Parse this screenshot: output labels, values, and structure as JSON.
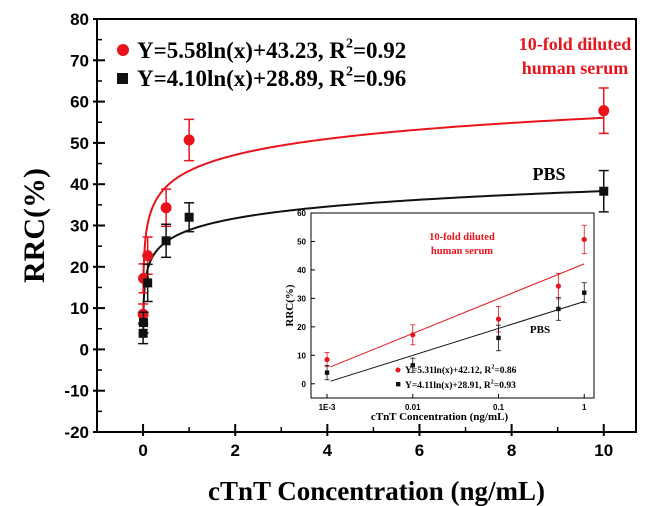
{
  "chart_data": [
    {
      "type": "scatter",
      "xlabel": "cTnT Concentration (ng/mL)",
      "ylabel": "RRC(%)",
      "xlim": [
        -1,
        10.7
      ],
      "ylim": [
        -20,
        80
      ],
      "xticks": [
        0,
        2,
        4,
        6,
        8,
        10
      ],
      "xtick_labels": [
        "0",
        "2",
        "4",
        "6",
        "8",
        "10"
      ],
      "yticks": [
        -20,
        -10,
        0,
        10,
        20,
        30,
        40,
        50,
        60,
        70,
        80
      ],
      "ytick_labels": [
        "-20",
        "-10",
        "0",
        "10",
        "20",
        "30",
        "40",
        "50",
        "60",
        "70",
        "80"
      ],
      "colors": {
        "serum": "#e8141c",
        "pbs": "#111111"
      },
      "series": [
        {
          "name": "10-fold diluted human serum",
          "marker": "circle",
          "color": "#e8141c",
          "x": [
            0.001,
            0.01,
            0.1,
            0.5,
            1,
            10
          ],
          "y": [
            8.5,
            17.2,
            22.7,
            34.3,
            50.7,
            57.8
          ],
          "yerr": [
            2.5,
            3.5,
            4.5,
            4.5,
            5.0,
            5.5
          ],
          "fit": {
            "a": 5.58,
            "b": 43.23
          },
          "equation": "Y=5.58ln(x)+43.23, R²=0.92",
          "label": [
            "10-fold diluted",
            "human serum"
          ]
        },
        {
          "name": "PBS",
          "marker": "square",
          "color": "#111111",
          "x": [
            0.001,
            0.01,
            0.1,
            0.5,
            1,
            10
          ],
          "y": [
            3.9,
            6.5,
            16.1,
            26.3,
            32.0,
            38.3
          ],
          "yerr": [
            2.5,
            2.5,
            4.5,
            4.0,
            3.5,
            5.0
          ],
          "fit": {
            "a": 4.1,
            "b": 28.89
          },
          "equation": "Y=4.10ln(x)+28.89, R²=0.96",
          "label": [
            "PBS"
          ]
        }
      ]
    },
    {
      "type": "scatter",
      "inset": true,
      "xlabel": "cTnT Concentration (ng/mL)",
      "ylabel": "RRC(%)",
      "xscale": "log",
      "xlim": [
        0.00065,
        1.3
      ],
      "ylim": [
        -5,
        60
      ],
      "xticks": [
        0.001,
        0.01,
        0.1,
        1
      ],
      "xtick_labels": [
        "1E-3",
        "0.01",
        "0.1",
        "1"
      ],
      "yticks": [
        0,
        10,
        20,
        30,
        40,
        50,
        60
      ],
      "ytick_labels": [
        "0",
        "10",
        "20",
        "30",
        "40",
        "50",
        "60"
      ],
      "series": [
        {
          "name": "10-fold diluted human serum",
          "marker": "circle",
          "color": "#e8141c",
          "x": [
            0.001,
            0.01,
            0.1,
            0.5,
            1
          ],
          "y": [
            8.5,
            17.2,
            22.7,
            34.3,
            50.7
          ],
          "yerr": [
            2.5,
            3.5,
            4.5,
            4.5,
            5.0
          ],
          "fit": {
            "a": 5.31,
            "b": 42.12
          },
          "equation": "Y=5.31ln(x)+42.12, R²=0.86",
          "label": [
            "10-fold diluted",
            "human serum"
          ]
        },
        {
          "name": "PBS",
          "marker": "square",
          "color": "#111111",
          "x": [
            0.001,
            0.01,
            0.1,
            0.5,
            1
          ],
          "y": [
            3.9,
            6.5,
            16.1,
            26.3,
            32.0
          ],
          "yerr": [
            2.5,
            2.5,
            4.5,
            4.0,
            3.5
          ],
          "fit": {
            "a": 4.11,
            "b": 28.91
          },
          "equation": "Y=4.11ln(x)+28.91, R²=0.93",
          "label": [
            "PBS"
          ]
        }
      ]
    }
  ]
}
